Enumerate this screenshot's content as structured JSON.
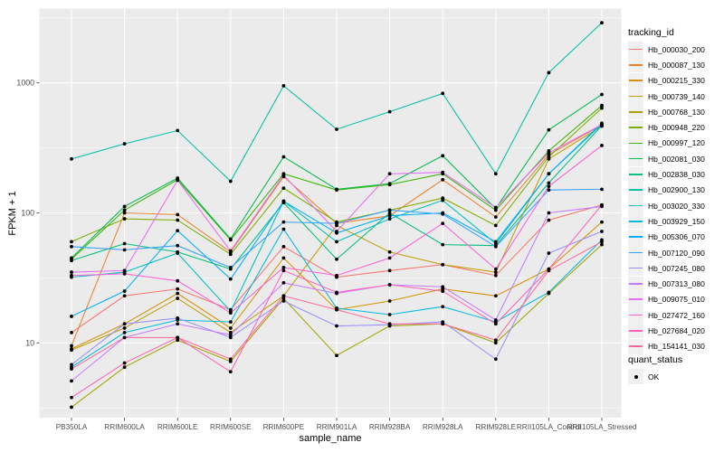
{
  "chart_data": {
    "type": "line",
    "title": "",
    "xlabel": "sample_name",
    "ylabel": "FPKM + 1",
    "y_scale": "log10",
    "y_ticks": [
      10,
      100,
      1000
    ],
    "y_minor_ticks_log": [
      0.5,
      1.5,
      2.5,
      3.5
    ],
    "ylim_log": [
      0.42,
      3.57
    ],
    "grid": "white major and minor on gray panel",
    "legend_position": "right",
    "point_marker": "small black dot on every data point",
    "categories": [
      "PB350LA",
      "RRIM600LA",
      "RRIM600LE",
      "RRIM600SE",
      "RRIM600PE",
      "RRIM901LA",
      "RRIM928BA",
      "RRIM928LA",
      "RRIM928LE",
      "RRII105LA_Control",
      "RRII105LA_Stressed"
    ],
    "series": [
      {
        "id": "Hb_000030_200",
        "color": "#F8766D",
        "values": [
          12,
          23,
          26,
          18,
          55,
          32,
          36,
          40,
          33,
          88,
          115
        ]
      },
      {
        "id": "Hb_000087_130",
        "color": "#EA8331",
        "values": [
          9.5,
          100,
          97,
          50,
          190,
          83,
          95,
          180,
          93,
          280,
          475
        ]
      },
      {
        "id": "Hb_000215_330",
        "color": "#D89000",
        "values": [
          9,
          14,
          24,
          13,
          45,
          18,
          21,
          26,
          23,
          37,
          85
        ]
      },
      {
        "id": "Hb_000739_140",
        "color": "#C09B00",
        "values": [
          8.8,
          13,
          22,
          12,
          23,
          80,
          50,
          40,
          35,
          260,
          465
        ]
      },
      {
        "id": "Hb_000768_130",
        "color": "#A3A500",
        "values": [
          3.2,
          6.5,
          10.5,
          7.2,
          22,
          8,
          13.5,
          14,
          10,
          24,
          57
        ]
      },
      {
        "id": "Hb_000948_220",
        "color": "#7CAE00",
        "values": [
          60,
          90,
          88,
          48,
          155,
          85,
          105,
          130,
          80,
          270,
          640
        ]
      },
      {
        "id": "Hb_000997_120",
        "color": "#39B600",
        "values": [
          44,
          105,
          180,
          62,
          200,
          150,
          165,
          200,
          105,
          300,
          670
        ]
      },
      {
        "id": "Hb_002081_030",
        "color": "#00BB4E",
        "values": [
          45,
          112,
          185,
          63,
          270,
          152,
          168,
          275,
          108,
          435,
          815
        ]
      },
      {
        "id": "Hb_002838_030",
        "color": "#00BF7D",
        "values": [
          43,
          58,
          50,
          37,
          120,
          44,
          100,
          57,
          56,
          170,
          470
        ]
      },
      {
        "id": "Hb_002900_130",
        "color": "#00C1A3",
        "values": [
          260,
          340,
          430,
          175,
          950,
          440,
          600,
          830,
          200,
          1200,
          2900
        ]
      },
      {
        "id": "Hb_003020_330",
        "color": "#00BFC4",
        "values": [
          32,
          35,
          49,
          17.5,
          123,
          60,
          90,
          125,
          58,
          200,
          480
        ]
      },
      {
        "id": "Hb_003929_150",
        "color": "#00BAE0",
        "values": [
          6.5,
          12,
          15,
          14.5,
          75,
          18.5,
          16.5,
          19,
          14.5,
          24.5,
          62
        ]
      },
      {
        "id": "Hb_005306_070",
        "color": "#00B0F6",
        "values": [
          16,
          25,
          73,
          31,
          123,
          70,
          95,
          100,
          60,
          200,
          490
        ]
      },
      {
        "id": "Hb_007120_090",
        "color": "#35A2FF",
        "values": [
          55,
          52,
          56,
          38,
          85,
          83,
          105,
          98,
          55,
          150,
          152
        ]
      },
      {
        "id": "Hb_007245_080",
        "color": "#9590FF",
        "values": [
          6.8,
          14,
          15.5,
          11,
          21,
          13.5,
          13.8,
          14.5,
          7.5,
          49,
          72
        ]
      },
      {
        "id": "Hb_007313_080",
        "color": "#C77CFF",
        "values": [
          5.1,
          11,
          14,
          11.5,
          29,
          24,
          28,
          27,
          15,
          100,
          112
        ]
      },
      {
        "id": "Hb_009075_010",
        "color": "#E76BF3",
        "values": [
          35,
          36,
          178,
          51,
          195,
          72,
          200,
          205,
          110,
          290,
          478
        ]
      },
      {
        "id": "Hb_027472_160",
        "color": "#FA62DB",
        "values": [
          33,
          34,
          30,
          17,
          38,
          33,
          45,
          83,
          37,
          160,
          330
        ]
      },
      {
        "id": "Hb_027684_020",
        "color": "#FF62BC",
        "values": [
          3.8,
          7,
          11,
          6,
          36,
          24.5,
          28,
          25,
          14,
          37,
          115
        ]
      },
      {
        "id": "Hb_154141_030",
        "color": "#FF6A98",
        "values": [
          6.3,
          11,
          11,
          7.5,
          23,
          18,
          14,
          14,
          10.5,
          36,
          60
        ]
      }
    ],
    "legends": {
      "tracking": {
        "title": "tracking_id"
      },
      "quant": {
        "title": "quant_status",
        "items": [
          {
            "label": "OK"
          }
        ]
      }
    },
    "colors": {
      "panel_bg": "#EBEBEB",
      "grid": "#FFFFFF",
      "tick_text": "#4D4D4D",
      "tick_mark": "#333333",
      "point": "#000000",
      "legend_key_bg": "#F0F0F0"
    }
  }
}
